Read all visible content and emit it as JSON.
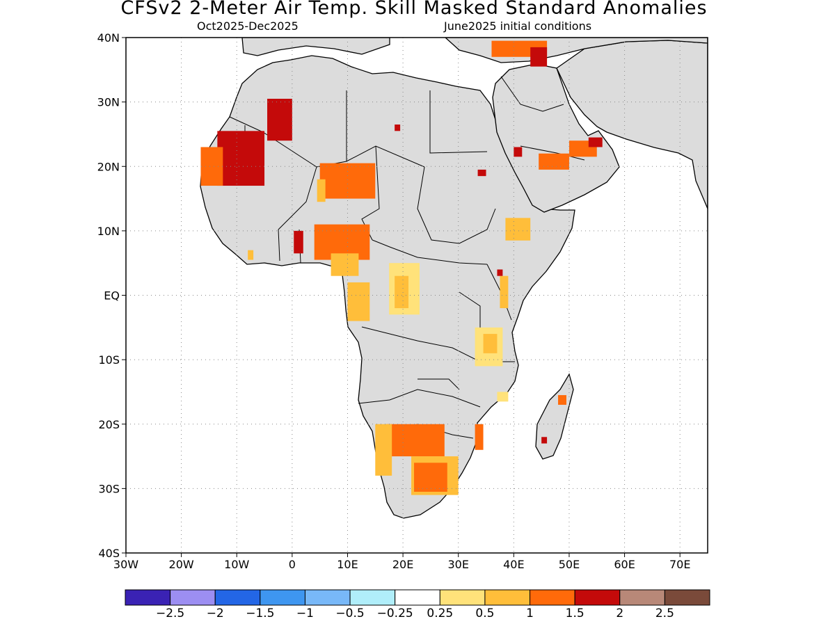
{
  "header": {
    "title": "CFSv2 2-Meter Air Temp. Skill Masked Standard Anomalies",
    "period": "Oct2025-Dec2025",
    "init": "June2025 initial conditions"
  },
  "axes": {
    "lat_labels": [
      "40N",
      "30N",
      "20N",
      "10N",
      "EQ",
      "10S",
      "20S",
      "30S",
      "40S"
    ],
    "lat_values": [
      40,
      30,
      20,
      10,
      0,
      -10,
      -20,
      -30,
      -40
    ],
    "lon_labels": [
      "30W",
      "20W",
      "10W",
      "0",
      "10E",
      "20E",
      "30E",
      "40E",
      "50E",
      "60E",
      "70E"
    ],
    "lon_values": [
      -30,
      -20,
      -10,
      0,
      10,
      20,
      30,
      40,
      50,
      60,
      70
    ],
    "lon_range": [
      -30,
      75
    ],
    "lat_range": [
      -40,
      40
    ],
    "grid": true
  },
  "colors": {
    "land": "#dcdcdc",
    "ocean": "#ffffff"
  },
  "legend": {
    "swatches": [
      "#3a22b4",
      "#9c8ef2",
      "#2366e6",
      "#3e96f0",
      "#78b8f8",
      "#b0eefa",
      "#ffffff",
      "#ffe27a",
      "#ffbe3a",
      "#ff6a0a",
      "#c40a0a",
      "#b88878",
      "#7a4a3a"
    ],
    "labels": [
      "-2.5",
      "-2",
      "-1.5",
      "-1",
      "-0.5",
      "-0.25",
      "0.25",
      "0.5",
      "1",
      "1.5",
      "2",
      "2.5"
    ]
  },
  "anomaly_regions": [
    {
      "name": "mauritania",
      "level": "2",
      "color": "#c40a0a",
      "lon": [
        -13.5,
        -5
      ],
      "lat": [
        17,
        25.5
      ]
    },
    {
      "name": "western-sahara-edge",
      "level": "1.5",
      "color": "#ff6a0a",
      "lon": [
        -16.5,
        -12.5
      ],
      "lat": [
        17,
        23
      ]
    },
    {
      "name": "algeria-west",
      "level": "2",
      "color": "#c40a0a",
      "lon": [
        -4.5,
        0
      ],
      "lat": [
        24,
        30.5
      ]
    },
    {
      "name": "niger-chad",
      "level": "1.5",
      "color": "#ff6a0a",
      "lon": [
        5,
        15
      ],
      "lat": [
        15,
        20.5
      ]
    },
    {
      "name": "niger-chad-fringe",
      "level": "1",
      "color": "#ffbe3a",
      "lon": [
        4.5,
        6
      ],
      "lat": [
        14.5,
        18
      ]
    },
    {
      "name": "nigeria",
      "level": "1.5",
      "color": "#ff6a0a",
      "lon": [
        4,
        14
      ],
      "lat": [
        5.5,
        11
      ]
    },
    {
      "name": "nigeria-fringe",
      "level": "1",
      "color": "#ffbe3a",
      "lon": [
        7,
        12
      ],
      "lat": [
        3,
        6.5
      ]
    },
    {
      "name": "cameroon-gabon",
      "level": "1",
      "color": "#ffbe3a",
      "lon": [
        10,
        14
      ],
      "lat": [
        -4,
        2
      ]
    },
    {
      "name": "togo",
      "level": "2",
      "color": "#c40a0a",
      "lon": [
        0.3,
        2
      ],
      "lat": [
        6.5,
        10
      ]
    },
    {
      "name": "liberia-spot",
      "level": "1",
      "color": "#ffbe3a",
      "lon": [
        -8,
        -7
      ],
      "lat": [
        5.5,
        7
      ]
    },
    {
      "name": "congo-basin",
      "level": "0.5",
      "color": "#ffe27a",
      "lon": [
        17.5,
        23
      ],
      "lat": [
        -3,
        5
      ]
    },
    {
      "name": "congo-basin-core",
      "level": "1",
      "color": "#ffbe3a",
      "lon": [
        18.5,
        21
      ],
      "lat": [
        -2,
        3
      ]
    },
    {
      "name": "ethiopia",
      "level": "1",
      "color": "#ffbe3a",
      "lon": [
        38.5,
        43
      ],
      "lat": [
        8.5,
        12
      ]
    },
    {
      "name": "kenya-north",
      "level": "1",
      "color": "#ffbe3a",
      "lon": [
        37.5,
        39
      ],
      "lat": [
        -2,
        3
      ]
    },
    {
      "name": "uganda-spot",
      "level": "2",
      "color": "#c40a0a",
      "lon": [
        37,
        38
      ],
      "lat": [
        3,
        4
      ]
    },
    {
      "name": "tanzania",
      "level": "0.5",
      "color": "#ffe27a",
      "lon": [
        33,
        38
      ],
      "lat": [
        -11,
        -5
      ]
    },
    {
      "name": "tanzania-core",
      "level": "1",
      "color": "#ffbe3a",
      "lon": [
        34.5,
        37
      ],
      "lat": [
        -9,
        -6
      ]
    },
    {
      "name": "saudi-yemen",
      "level": "1.5",
      "color": "#ff6a0a",
      "lon": [
        44.5,
        50
      ],
      "lat": [
        19.5,
        22
      ]
    },
    {
      "name": "saudi-spot",
      "level": "2",
      "color": "#c40a0a",
      "lon": [
        40,
        41.5
      ],
      "lat": [
        21.5,
        23
      ]
    },
    {
      "name": "uae-oman",
      "level": "1.5",
      "color": "#ff6a0a",
      "lon": [
        50,
        55
      ],
      "lat": [
        21.5,
        24
      ]
    },
    {
      "name": "uae-core",
      "level": "2",
      "color": "#c40a0a",
      "lon": [
        53.5,
        56
      ],
      "lat": [
        23,
        24.5
      ]
    },
    {
      "name": "turkey-east",
      "level": "1.5",
      "color": "#ff6a0a",
      "lon": [
        36,
        46
      ],
      "lat": [
        37,
        39.5
      ]
    },
    {
      "name": "caucasus-spot",
      "level": "2",
      "color": "#c40a0a",
      "lon": [
        43,
        46
      ],
      "lat": [
        35.5,
        38.5
      ]
    },
    {
      "name": "sudan-spot",
      "level": "2",
      "color": "#c40a0a",
      "lon": [
        33.5,
        35
      ],
      "lat": [
        18.5,
        19.5
      ]
    },
    {
      "name": "libya-spot",
      "level": "2",
      "color": "#c40a0a",
      "lon": [
        18.5,
        19.5
      ],
      "lat": [
        25.5,
        26.5
      ]
    },
    {
      "name": "namibia-botswana",
      "level": "1.5",
      "color": "#ff6a0a",
      "lon": [
        17,
        27.5
      ],
      "lat": [
        -25,
        -20
      ]
    },
    {
      "name": "namibia-fringe",
      "level": "1",
      "color": "#ffbe3a",
      "lon": [
        15,
        18
      ],
      "lat": [
        -28,
        -20
      ]
    },
    {
      "name": "south-africa",
      "level": "1",
      "color": "#ffbe3a",
      "lon": [
        21.5,
        30
      ],
      "lat": [
        -31,
        -25
      ]
    },
    {
      "name": "south-africa-core",
      "level": "1.5",
      "color": "#ff6a0a",
      "lon": [
        22,
        28
      ],
      "lat": [
        -30.5,
        -26
      ]
    },
    {
      "name": "mozambique-strip",
      "level": "1.5",
      "color": "#ff6a0a",
      "lon": [
        33,
        34.5
      ],
      "lat": [
        -24,
        -20
      ]
    },
    {
      "name": "madagascar-east",
      "level": "1.5",
      "color": "#ff6a0a",
      "lon": [
        48,
        49.5
      ],
      "lat": [
        -17,
        -15.5
      ]
    },
    {
      "name": "madagascar-west",
      "level": "2",
      "color": "#c40a0a",
      "lon": [
        45,
        46
      ],
      "lat": [
        -23,
        -22
      ]
    },
    {
      "name": "malawi-spot",
      "level": "0.5",
      "color": "#ffe27a",
      "lon": [
        37,
        39
      ],
      "lat": [
        -16.5,
        -15
      ]
    }
  ]
}
